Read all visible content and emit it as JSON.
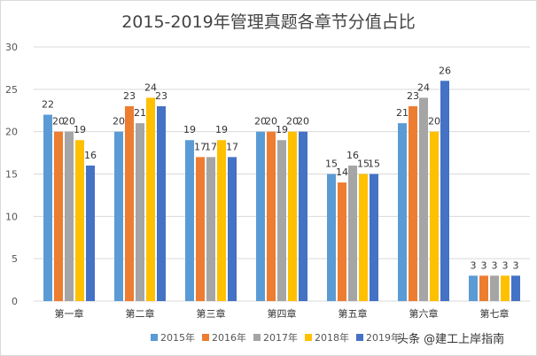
{
  "chart_data": {
    "type": "bar",
    "title": "2015-2019年管理真题各章节分值占比",
    "categories": [
      "第一章",
      "第二章",
      "第三章",
      "第四章",
      "第五章",
      "第六章",
      "第七章"
    ],
    "series": [
      {
        "name": "2015年",
        "color": "#5b9bd5",
        "values": [
          22,
          20,
          19,
          20,
          15,
          21,
          3
        ]
      },
      {
        "name": "2016年",
        "color": "#ed7d31",
        "values": [
          20,
          23,
          17,
          20,
          14,
          23,
          3
        ]
      },
      {
        "name": "2017年",
        "color": "#a5a5a5",
        "values": [
          20,
          21,
          17,
          19,
          16,
          24,
          3
        ]
      },
      {
        "name": "2018年",
        "color": "#ffc000",
        "values": [
          19,
          24,
          19,
          20,
          15,
          20,
          3
        ]
      },
      {
        "name": "2019年",
        "color": "#4472c4",
        "values": [
          16,
          23,
          17,
          20,
          15,
          26,
          3
        ]
      }
    ],
    "yticks": [
      "0",
      "5",
      "10",
      "15",
      "20",
      "25",
      "30"
    ],
    "ylim": [
      0,
      30
    ],
    "grid": true,
    "legend": "bottom",
    "xlabel": "",
    "ylabel": ""
  },
  "watermark": "头条 @建工上岸指南"
}
